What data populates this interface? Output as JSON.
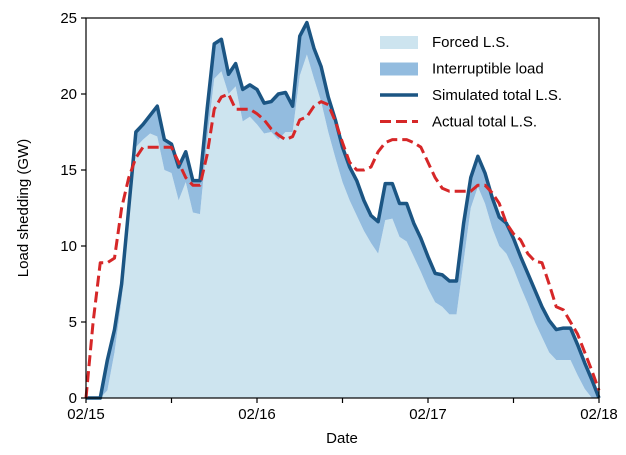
{
  "chart_data": {
    "type": "area",
    "xlabel": "Date",
    "ylabel": "Load shedding (GW)",
    "x": [
      0,
      1,
      2,
      3,
      4,
      5,
      6,
      7,
      8,
      9,
      10,
      11,
      12,
      13,
      14,
      15,
      16,
      17,
      18,
      19,
      20,
      21,
      22,
      23,
      24,
      25,
      26,
      27,
      28,
      29,
      30,
      31,
      32,
      33,
      34,
      35,
      36,
      37,
      38,
      39,
      40,
      41,
      42,
      43,
      44,
      45,
      46,
      47,
      48,
      49,
      50,
      51,
      52,
      53,
      54,
      55,
      56,
      57,
      58,
      59,
      60,
      61,
      62,
      63,
      64,
      65,
      66,
      67,
      68,
      69,
      70,
      71,
      72
    ],
    "xlim": [
      0,
      72
    ],
    "xticks": [
      {
        "value": 0,
        "label": "02/15"
      },
      {
        "value": 24,
        "label": "02/16"
      },
      {
        "value": 48,
        "label": "02/17"
      },
      {
        "value": 72,
        "label": "02/18"
      }
    ],
    "xminorticks": [
      12,
      36,
      60
    ],
    "ylim": [
      0,
      25
    ],
    "yticks": [
      0,
      5,
      10,
      15,
      20,
      25
    ],
    "legend": "upper right",
    "series": [
      {
        "name": "Forced L.S.",
        "type": "area",
        "stacked": true,
        "color": "#cde4ef",
        "values": [
          0,
          0,
          0,
          0.5,
          3,
          6.5,
          11.5,
          16.5,
          17,
          17.4,
          17.2,
          15,
          14.8,
          13,
          14.2,
          12.2,
          12.1,
          17,
          21,
          21.5,
          20,
          20.5,
          18.2,
          18.5,
          18,
          17.4,
          17.5,
          17,
          17.5,
          17.5,
          21.2,
          22.6,
          21,
          19.5,
          17.5,
          15.8,
          14.2,
          13,
          12,
          11,
          10.2,
          9.5,
          11.7,
          11.8,
          10.6,
          10.3,
          9.3,
          8.3,
          7.2,
          6.3,
          6,
          5.5,
          5.5,
          9,
          12.5,
          13.9,
          12.8,
          11.2,
          10,
          9.5,
          8.5,
          7.3,
          6.2,
          5,
          4,
          3,
          2.5,
          2.5,
          2.5,
          1.5,
          0.6,
          0,
          0
        ]
      },
      {
        "name": "Interruptible load",
        "type": "area",
        "stacked": true,
        "color": "#93bcdf",
        "values": [
          0,
          0,
          0,
          2,
          1.5,
          1,
          1,
          1,
          1,
          1.2,
          2,
          2,
          1.9,
          2.2,
          2,
          2.1,
          2.2,
          2,
          2.3,
          2.1,
          1.3,
          1.5,
          2.1,
          2.1,
          2.3,
          2,
          2,
          3,
          2.6,
          1.7,
          2.6,
          2.1,
          2,
          2.3,
          2.3,
          2.5,
          2.3,
          2.2,
          2.3,
          2,
          1.8,
          2.1,
          2.4,
          2.3,
          2.2,
          2.5,
          2.2,
          2.2,
          2.1,
          1.9,
          2.1,
          2.2,
          2.2,
          2.5,
          2,
          2,
          2,
          2,
          1.9,
          2,
          2,
          2,
          2,
          2.1,
          2,
          2.1,
          2,
          2.1,
          2.1,
          2,
          1.7,
          1.2,
          0
        ]
      },
      {
        "name": "Simulated total L.S.",
        "type": "line",
        "dashed": false,
        "color": "#1b5583",
        "values": [
          0,
          0,
          0,
          2.5,
          4.5,
          7.5,
          12.5,
          17.5,
          18,
          18.6,
          19.2,
          17,
          16.7,
          15.2,
          16.2,
          14.3,
          14.3,
          19,
          23.3,
          23.6,
          21.3,
          22,
          20.3,
          20.6,
          20.3,
          19.4,
          19.5,
          20,
          20.1,
          19.2,
          23.8,
          24.7,
          23,
          21.8,
          19.8,
          18.3,
          16.5,
          15.2,
          14.3,
          13,
          12,
          11.6,
          14.1,
          14.1,
          12.8,
          12.8,
          11.5,
          10.5,
          9.3,
          8.2,
          8.1,
          7.7,
          7.7,
          11.5,
          14.5,
          15.9,
          14.8,
          13.2,
          11.9,
          11.5,
          10.5,
          9.3,
          8.2,
          7.1,
          6,
          5.1,
          4.5,
          4.6,
          4.6,
          3.5,
          2.3,
          1.2,
          0
        ]
      },
      {
        "name": "Actual total L.S.",
        "type": "line",
        "dashed": true,
        "color": "#d62728",
        "values": [
          0,
          5,
          8.9,
          8.9,
          9.2,
          12.5,
          14.5,
          15.8,
          16.5,
          16.5,
          16.5,
          16.5,
          16.5,
          15.5,
          14.5,
          14,
          14,
          16,
          19,
          19.8,
          20,
          19,
          19,
          19,
          18.7,
          18.3,
          17.7,
          17.3,
          17,
          17.2,
          18.3,
          18.5,
          19.2,
          19.5,
          19.3,
          18.2,
          16.8,
          15.5,
          15,
          15,
          15.2,
          16.2,
          16.8,
          17,
          17,
          17,
          16.8,
          16.5,
          15.5,
          14.5,
          13.8,
          13.6,
          13.6,
          13.6,
          13.6,
          14,
          14,
          13.5,
          12.8,
          11.5,
          10.8,
          10.4,
          9.5,
          9,
          8.9,
          7.5,
          6,
          5.8,
          5,
          4.2,
          3,
          1.8,
          0.5
        ]
      }
    ]
  }
}
